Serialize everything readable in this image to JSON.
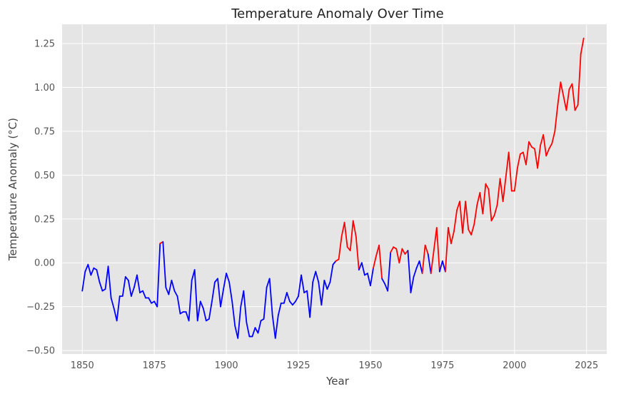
{
  "chart_data": {
    "type": "line",
    "title": "Temperature Anomaly Over Time",
    "xlabel": "Year",
    "ylabel": "Temperature Anomaly (°C)",
    "xlim": [
      1843,
      2032
    ],
    "ylim": [
      -0.52,
      1.36
    ],
    "xticks": [
      1850,
      1875,
      1900,
      1925,
      1950,
      1975,
      2000,
      2025
    ],
    "yticks": [
      -0.5,
      -0.25,
      0.0,
      0.25,
      0.5,
      0.75,
      1.0,
      1.25
    ],
    "ytick_labels": [
      "−0.50",
      "−0.25",
      "0.00",
      "0.25",
      "0.50",
      "0.75",
      "1.00",
      "1.25"
    ],
    "grid": true,
    "colors": {
      "background": "#e5e5e5",
      "grid": "#ffffff",
      "below_threshold": "#0000ff",
      "above_threshold": "#ff0000"
    },
    "threshold": 0.0,
    "series": [
      {
        "name": "Temperature Anomaly",
        "x_start": 1850,
        "x_step": 1,
        "values": [
          -0.16,
          -0.05,
          -0.01,
          -0.07,
          -0.03,
          -0.04,
          -0.11,
          -0.16,
          -0.15,
          -0.02,
          -0.2,
          -0.26,
          -0.33,
          -0.19,
          -0.19,
          -0.08,
          -0.1,
          -0.19,
          -0.14,
          -0.07,
          -0.17,
          -0.16,
          -0.2,
          -0.2,
          -0.23,
          -0.22,
          -0.25,
          0.11,
          0.12,
          -0.14,
          -0.18,
          -0.1,
          -0.16,
          -0.19,
          -0.29,
          -0.28,
          -0.28,
          -0.33,
          -0.1,
          -0.04,
          -0.33,
          -0.22,
          -0.26,
          -0.33,
          -0.32,
          -0.22,
          -0.11,
          -0.09,
          -0.25,
          -0.15,
          -0.06,
          -0.11,
          -0.22,
          -0.36,
          -0.43,
          -0.25,
          -0.16,
          -0.34,
          -0.42,
          -0.42,
          -0.37,
          -0.4,
          -0.33,
          -0.32,
          -0.14,
          -0.09,
          -0.3,
          -0.43,
          -0.3,
          -0.23,
          -0.23,
          -0.17,
          -0.22,
          -0.24,
          -0.22,
          -0.19,
          -0.07,
          -0.17,
          -0.16,
          -0.31,
          -0.11,
          -0.05,
          -0.11,
          -0.24,
          -0.1,
          -0.15,
          -0.11,
          -0.01,
          0.01,
          0.02,
          0.15,
          0.23,
          0.09,
          0.07,
          0.24,
          0.15,
          -0.04,
          0.0,
          -0.07,
          -0.06,
          -0.13,
          -0.03,
          0.04,
          0.1,
          -0.09,
          -0.12,
          -0.16,
          0.06,
          0.09,
          0.08,
          0.0,
          0.08,
          0.05,
          0.07,
          -0.17,
          -0.08,
          -0.03,
          0.01,
          -0.06,
          0.1,
          0.05,
          -0.06,
          0.07,
          0.2,
          -0.05,
          0.01,
          -0.05,
          0.2,
          0.11,
          0.18,
          0.3,
          0.35,
          0.17,
          0.35,
          0.19,
          0.16,
          0.22,
          0.33,
          0.4,
          0.28,
          0.45,
          0.42,
          0.24,
          0.27,
          0.33,
          0.48,
          0.35,
          0.49,
          0.63,
          0.41,
          0.41,
          0.54,
          0.62,
          0.63,
          0.56,
          0.69,
          0.66,
          0.65,
          0.54,
          0.67,
          0.73,
          0.61,
          0.65,
          0.68,
          0.75,
          0.9,
          1.03,
          0.95,
          0.87,
          0.99,
          1.02,
          0.87,
          0.9,
          1.19,
          1.28
        ]
      }
    ]
  }
}
